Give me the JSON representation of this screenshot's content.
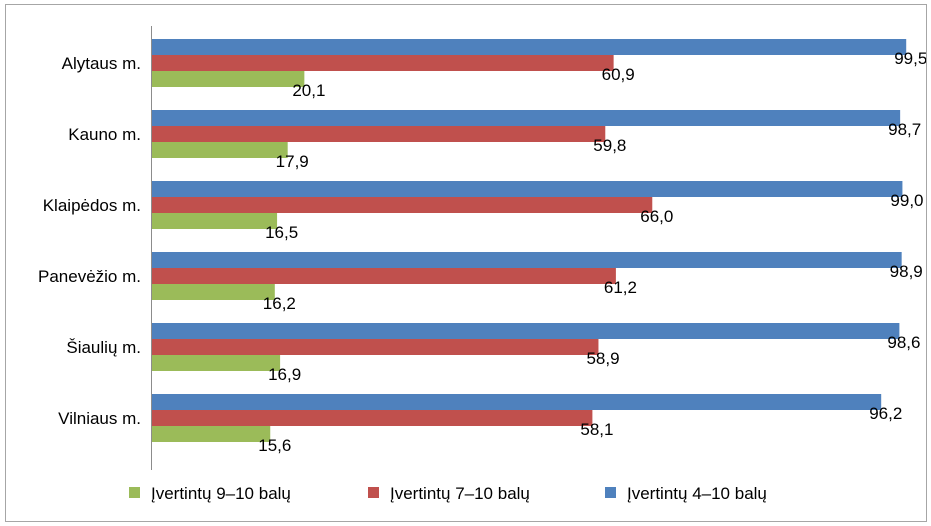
{
  "chart_data": {
    "type": "bar",
    "orientation": "horizontal",
    "categories": [
      "Alytaus m.",
      "Kauno m.",
      "Klaipėdos m.",
      "Panevėžio m.",
      "Šiaulių m.",
      "Vilniaus m."
    ],
    "series": [
      {
        "name": "Įvertintų 4–10 balų",
        "color": "#4f81bd",
        "values": [
          99.5,
          98.7,
          99.0,
          98.9,
          98.6,
          96.2
        ],
        "labels": [
          "99,5",
          "98,7",
          "99,0",
          "98,9",
          "98,6",
          "96,2"
        ]
      },
      {
        "name": "Įvertintų 7–10 balų",
        "color": "#c0504d",
        "values": [
          60.9,
          59.8,
          66.0,
          61.2,
          58.9,
          58.1
        ],
        "labels": [
          "60,9",
          "59,8",
          "66,0",
          "61,2",
          "58,9",
          "58,1"
        ]
      },
      {
        "name": "Įvertintų 9–10 balų",
        "color": "#9bbb59",
        "values": [
          20.1,
          17.9,
          16.5,
          16.2,
          16.9,
          15.6
        ],
        "labels": [
          "20,1",
          "17,9",
          "16,5",
          "16,2",
          "16,9",
          "15,6"
        ]
      }
    ],
    "legend_order": [
      2,
      1,
      0
    ],
    "xlim": [
      0,
      100
    ],
    "grid": false,
    "legend_position": "bottom",
    "title": "",
    "xlabel": "",
    "ylabel": ""
  }
}
